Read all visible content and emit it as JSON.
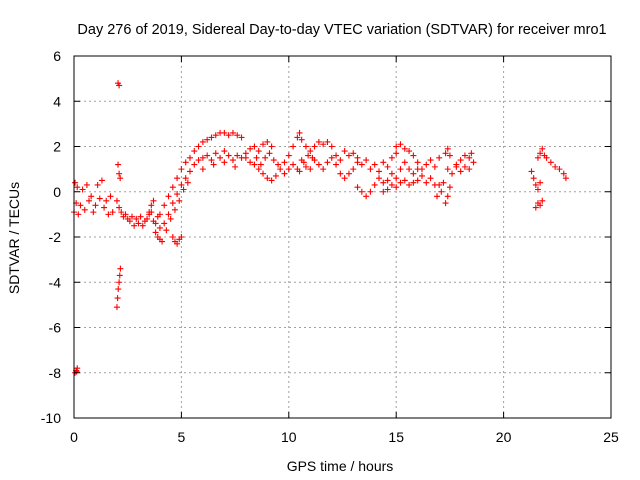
{
  "chart_data": {
    "type": "scatter",
    "title": "Day 276 of 2019, Sidereal Day-to-day VTEC variation (SDTVAR) for receiver mro1",
    "xlabel": "GPS time / hours",
    "ylabel": "SDTVAR / TECUs",
    "xlim": [
      0,
      25
    ],
    "ylim": [
      -10,
      6
    ],
    "x_ticks": [
      0,
      5,
      10,
      15,
      20,
      25
    ],
    "y_ticks": [
      -10,
      -8,
      -6,
      -4,
      -2,
      0,
      2,
      4,
      6
    ],
    "x_tick_labels": [
      "0",
      "5",
      "10",
      "15",
      "20",
      "25"
    ],
    "y_tick_labels": [
      "-10",
      "-8",
      "-6",
      "-4",
      "-2",
      "0",
      "2",
      "4",
      "6"
    ],
    "grid": true,
    "marker": "plus",
    "color": "#ff0000",
    "series": [
      {
        "name": "SDTVAR",
        "points": [
          [
            0.0,
            -0.9
          ],
          [
            0.05,
            0.4
          ],
          [
            0.1,
            -0.5
          ],
          [
            0.15,
            0.2
          ],
          [
            0.2,
            -1.0
          ],
          [
            0.3,
            -0.6
          ],
          [
            0.4,
            0.1
          ],
          [
            0.5,
            -0.8
          ],
          [
            0.6,
            0.3
          ],
          [
            0.7,
            -0.4
          ],
          [
            0.8,
            -0.2
          ],
          [
            0.9,
            -0.9
          ],
          [
            1.0,
            -0.6
          ],
          [
            1.1,
            0.3
          ],
          [
            1.2,
            -0.3
          ],
          [
            1.3,
            0.5
          ],
          [
            1.4,
            -0.7
          ],
          [
            1.5,
            -0.4
          ],
          [
            1.6,
            -1.0
          ],
          [
            1.7,
            -0.2
          ],
          [
            1.8,
            -0.9
          ],
          [
            0.05,
            -8.0
          ],
          [
            0.1,
            -7.9
          ],
          [
            0.15,
            -7.8
          ],
          [
            0.12,
            -7.95
          ],
          [
            2.05,
            4.8
          ],
          [
            2.1,
            4.7
          ],
          [
            2.05,
            1.2
          ],
          [
            2.1,
            0.8
          ],
          [
            2.15,
            0.6
          ],
          [
            2.0,
            -5.1
          ],
          [
            2.03,
            -4.7
          ],
          [
            2.06,
            -4.3
          ],
          [
            2.1,
            -4.0
          ],
          [
            2.13,
            -3.7
          ],
          [
            2.16,
            -3.4
          ],
          [
            2.0,
            -0.4
          ],
          [
            2.1,
            -0.7
          ],
          [
            2.2,
            -0.9
          ],
          [
            2.3,
            -1.1
          ],
          [
            2.4,
            -1.0
          ],
          [
            2.5,
            -1.2
          ],
          [
            2.6,
            -1.3
          ],
          [
            2.7,
            -1.1
          ],
          [
            2.8,
            -1.5
          ],
          [
            2.9,
            -1.2
          ],
          [
            3.0,
            -1.4
          ],
          [
            3.1,
            -1.1
          ],
          [
            3.2,
            -1.5
          ],
          [
            3.3,
            -1.3
          ],
          [
            3.4,
            -1.2
          ],
          [
            3.5,
            -1.0
          ],
          [
            3.6,
            -0.9
          ],
          [
            3.7,
            -1.3
          ],
          [
            3.8,
            -1.4
          ],
          [
            3.9,
            -1.1
          ],
          [
            4.0,
            -1.6
          ],
          [
            3.5,
            -0.9
          ],
          [
            3.6,
            -0.6
          ],
          [
            3.7,
            -0.4
          ],
          [
            3.8,
            -1.8
          ],
          [
            3.9,
            -2.0
          ],
          [
            4.0,
            -2.1
          ],
          [
            4.1,
            -2.2
          ],
          [
            4.6,
            -2.0
          ],
          [
            4.7,
            -2.2
          ],
          [
            4.8,
            -2.3
          ],
          [
            4.9,
            -2.1
          ],
          [
            5.0,
            -2.0
          ],
          [
            4.0,
            -1.0
          ],
          [
            4.2,
            -0.6
          ],
          [
            4.4,
            -0.2
          ],
          [
            4.6,
            0.2
          ],
          [
            4.8,
            0.6
          ],
          [
            5.0,
            1.0
          ],
          [
            5.2,
            1.3
          ],
          [
            5.4,
            1.5
          ],
          [
            4.2,
            -1.4
          ],
          [
            4.4,
            -1.0
          ],
          [
            4.6,
            -0.5
          ],
          [
            4.8,
            -0.1
          ],
          [
            5.0,
            0.3
          ],
          [
            5.2,
            0.6
          ],
          [
            5.4,
            0.9
          ],
          [
            4.3,
            -1.7
          ],
          [
            4.5,
            -1.2
          ],
          [
            4.7,
            -0.8
          ],
          [
            4.9,
            -0.4
          ],
          [
            5.1,
            0.1
          ],
          [
            5.3,
            0.4
          ],
          [
            5.6,
            1.8
          ],
          [
            5.8,
            2.0
          ],
          [
            6.0,
            2.2
          ],
          [
            6.2,
            2.3
          ],
          [
            6.4,
            2.4
          ],
          [
            6.6,
            2.5
          ],
          [
            6.8,
            2.6
          ],
          [
            7.0,
            2.6
          ],
          [
            7.2,
            2.5
          ],
          [
            7.4,
            2.6
          ],
          [
            7.6,
            2.5
          ],
          [
            7.8,
            2.4
          ],
          [
            5.6,
            1.2
          ],
          [
            5.8,
            1.4
          ],
          [
            6.0,
            1.5
          ],
          [
            6.2,
            1.6
          ],
          [
            6.4,
            1.4
          ],
          [
            6.6,
            1.7
          ],
          [
            6.8,
            1.5
          ],
          [
            7.0,
            1.8
          ],
          [
            7.2,
            1.6
          ],
          [
            7.4,
            1.4
          ],
          [
            7.6,
            1.6
          ],
          [
            7.8,
            1.5
          ],
          [
            6.0,
            1.0
          ],
          [
            6.5,
            1.2
          ],
          [
            7.0,
            1.3
          ],
          [
            7.5,
            1.1
          ],
          [
            8.0,
            1.5
          ],
          [
            8.2,
            1.3
          ],
          [
            8.4,
            1.2
          ],
          [
            8.6,
            1.0
          ],
          [
            8.8,
            0.8
          ],
          [
            9.0,
            0.6
          ],
          [
            9.2,
            0.5
          ],
          [
            9.4,
            0.7
          ],
          [
            9.6,
            1.0
          ],
          [
            8.0,
            1.7
          ],
          [
            8.2,
            1.9
          ],
          [
            8.4,
            2.0
          ],
          [
            8.6,
            1.8
          ],
          [
            8.8,
            2.1
          ],
          [
            9.0,
            2.2
          ],
          [
            9.2,
            2.0
          ],
          [
            8.5,
            1.5
          ],
          [
            8.7,
            1.2
          ],
          [
            8.9,
            1.5
          ],
          [
            9.1,
            1.7
          ],
          [
            9.3,
            1.4
          ],
          [
            9.5,
            1.2
          ],
          [
            9.8,
            1.3
          ],
          [
            10.0,
            1.6
          ],
          [
            10.2,
            2.0
          ],
          [
            10.4,
            2.4
          ],
          [
            10.5,
            2.6
          ],
          [
            10.6,
            2.3
          ],
          [
            10.8,
            2.0
          ],
          [
            11.0,
            1.8
          ],
          [
            9.8,
            0.8
          ],
          [
            10.0,
            1.0
          ],
          [
            10.2,
            1.2
          ],
          [
            10.4,
            1.0
          ],
          [
            10.6,
            1.4
          ],
          [
            10.8,
            1.1
          ],
          [
            11.0,
            1.0
          ],
          [
            10.5,
            0.9
          ],
          [
            10.7,
            1.3
          ],
          [
            10.9,
            1.6
          ],
          [
            11.1,
            1.5
          ],
          [
            11.2,
            2.0
          ],
          [
            11.4,
            2.2
          ],
          [
            11.6,
            2.1
          ],
          [
            11.8,
            2.2
          ],
          [
            12.0,
            2.0
          ],
          [
            11.2,
            1.4
          ],
          [
            11.4,
            1.2
          ],
          [
            11.6,
            1.0
          ],
          [
            11.8,
            1.3
          ],
          [
            12.0,
            1.5
          ],
          [
            12.2,
            1.6
          ],
          [
            12.4,
            1.4
          ],
          [
            12.2,
            1.2
          ],
          [
            12.4,
            0.8
          ],
          [
            12.6,
            0.6
          ],
          [
            12.8,
            0.8
          ],
          [
            13.0,
            1.0
          ],
          [
            13.2,
            1.3
          ],
          [
            12.6,
            1.8
          ],
          [
            12.8,
            1.6
          ],
          [
            13.0,
            1.7
          ],
          [
            13.2,
            1.5
          ],
          [
            13.4,
            1.2
          ],
          [
            13.6,
            1.4
          ],
          [
            13.2,
            0.2
          ],
          [
            13.4,
            0.0
          ],
          [
            13.6,
            -0.2
          ],
          [
            13.8,
            0.0
          ],
          [
            14.0,
            0.3
          ],
          [
            13.8,
            1.0
          ],
          [
            14.0,
            1.2
          ],
          [
            14.2,
            0.9
          ],
          [
            14.4,
            1.3
          ],
          [
            14.6,
            1.1
          ],
          [
            14.8,
            1.5
          ],
          [
            15.0,
            1.7
          ],
          [
            14.2,
            0.6
          ],
          [
            14.4,
            0.4
          ],
          [
            14.6,
            0.5
          ],
          [
            14.8,
            0.8
          ],
          [
            15.0,
            0.6
          ],
          [
            15.0,
            2.0
          ],
          [
            15.2,
            2.1
          ],
          [
            15.4,
            1.9
          ],
          [
            15.6,
            1.8
          ],
          [
            15.8,
            1.6
          ],
          [
            16.0,
            1.3
          ],
          [
            15.2,
            1.0
          ],
          [
            15.4,
            1.3
          ],
          [
            15.6,
            1.0
          ],
          [
            15.8,
            0.8
          ],
          [
            16.0,
            1.0
          ],
          [
            14.4,
            0.0
          ],
          [
            14.6,
            0.1
          ],
          [
            14.8,
            0.3
          ],
          [
            15.0,
            0.2
          ],
          [
            15.2,
            0.4
          ],
          [
            15.4,
            0.5
          ],
          [
            15.6,
            0.3
          ],
          [
            15.8,
            0.4
          ],
          [
            16.0,
            0.5
          ],
          [
            16.2,
            0.7
          ],
          [
            16.4,
            0.4
          ],
          [
            16.6,
            0.6
          ],
          [
            16.8,
            0.3
          ],
          [
            16.2,
            1.0
          ],
          [
            16.4,
            1.2
          ],
          [
            16.6,
            1.4
          ],
          [
            16.8,
            1.1
          ],
          [
            17.0,
            1.5
          ],
          [
            16.9,
            -0.2
          ],
          [
            17.0,
            0.3
          ],
          [
            17.1,
            0.0
          ],
          [
            17.2,
            0.4
          ],
          [
            17.3,
            1.7
          ],
          [
            17.4,
            1.9
          ],
          [
            17.5,
            1.6
          ],
          [
            17.4,
            1.0
          ],
          [
            17.6,
            0.8
          ],
          [
            17.8,
            1.1
          ],
          [
            17.3,
            -0.5
          ],
          [
            17.4,
            -0.2
          ],
          [
            17.5,
            0.2
          ],
          [
            17.8,
            1.2
          ],
          [
            18.0,
            1.4
          ],
          [
            18.2,
            1.6
          ],
          [
            18.4,
            1.5
          ],
          [
            18.5,
            1.7
          ],
          [
            18.6,
            1.3
          ],
          [
            18.0,
            0.9
          ],
          [
            18.2,
            1.1
          ],
          [
            18.4,
            1.0
          ],
          [
            21.3,
            0.9
          ],
          [
            21.4,
            0.6
          ],
          [
            21.5,
            0.3
          ],
          [
            21.6,
            0.1
          ],
          [
            21.7,
            0.4
          ],
          [
            21.6,
            1.5
          ],
          [
            21.7,
            1.7
          ],
          [
            21.8,
            1.9
          ],
          [
            21.9,
            1.6
          ],
          [
            21.5,
            -0.7
          ],
          [
            21.6,
            -0.5
          ],
          [
            21.7,
            -0.6
          ],
          [
            21.8,
            -0.4
          ],
          [
            22.0,
            1.5
          ],
          [
            22.2,
            1.3
          ],
          [
            22.4,
            1.1
          ],
          [
            22.6,
            1.0
          ],
          [
            22.8,
            0.8
          ],
          [
            22.9,
            0.6
          ]
        ]
      }
    ]
  }
}
